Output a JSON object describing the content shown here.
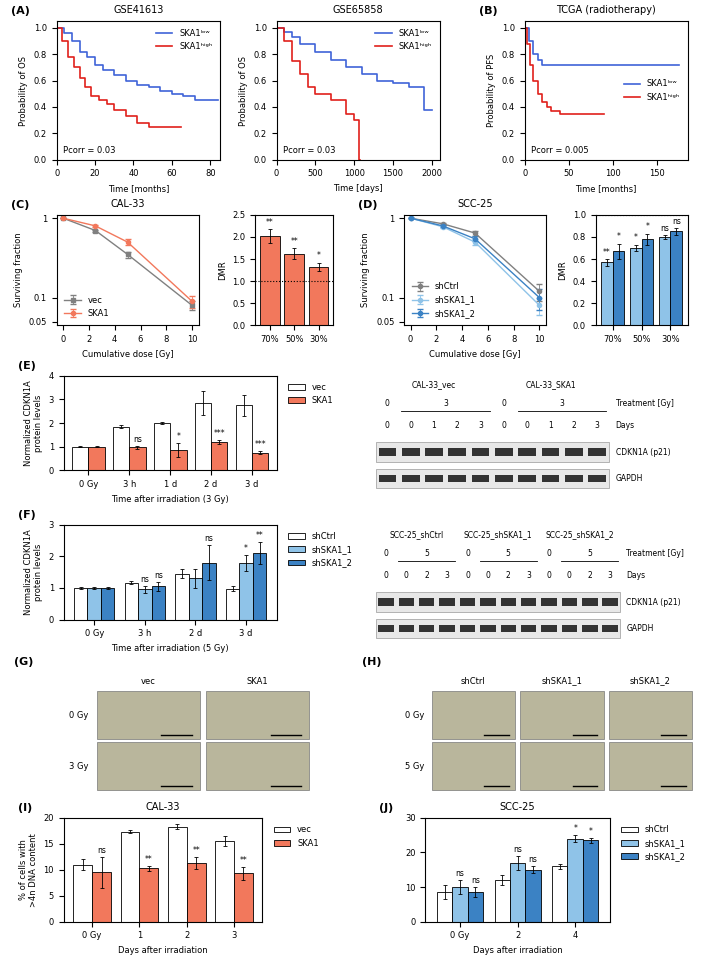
{
  "chart_data": [
    {
      "type": "step",
      "panel": "(A)",
      "title": "GSE41613",
      "xlabel": "Time [months]",
      "ylabel": "Probability of OS",
      "annotation": "Pcorr = 0.03",
      "legend": "upper right",
      "xlim": [
        0,
        85
      ],
      "xticks": [
        0,
        20,
        40,
        60,
        80
      ],
      "ylim": [
        0,
        1.05
      ],
      "yticks": [
        {
          "value": 0,
          "label": "0.0"
        },
        {
          "value": 0.2,
          "label": "0.2"
        },
        {
          "value": 0.4,
          "label": "0.4"
        },
        {
          "value": 0.6,
          "label": "0.6"
        },
        {
          "value": 0.8,
          "label": "0.8"
        },
        {
          "value": 1,
          "label": "1.0"
        }
      ],
      "series": [
        {
          "name": "SKA1ˡᵒʷ",
          "color": "#3f63d8",
          "x": [
            0,
            4,
            8,
            12,
            16,
            20,
            24,
            30,
            36,
            42,
            48,
            54,
            60,
            66,
            72,
            80,
            84
          ],
          "values": [
            1,
            0.96,
            0.9,
            0.82,
            0.78,
            0.72,
            0.68,
            0.64,
            0.6,
            0.57,
            0.55,
            0.52,
            0.5,
            0.48,
            0.45,
            0.45,
            0.45
          ]
        },
        {
          "name": "SKA1ʰⁱᵍʰ",
          "color": "#e0201b",
          "x": [
            0,
            3,
            6,
            9,
            12,
            15,
            18,
            22,
            26,
            30,
            36,
            42,
            48,
            56,
            65
          ],
          "values": [
            1,
            0.9,
            0.78,
            0.7,
            0.62,
            0.55,
            0.48,
            0.45,
            0.42,
            0.38,
            0.33,
            0.28,
            0.25,
            0.25,
            0.25
          ]
        }
      ]
    },
    {
      "type": "step",
      "title": "GSE65858",
      "xlabel": "Time [days]",
      "ylabel": "Probability of OS",
      "annotation": "Pcorr = 0.03",
      "legend": "upper right",
      "xlim": [
        0,
        2100
      ],
      "xticks": [
        0,
        500,
        1000,
        1500,
        2000
      ],
      "ylim": [
        0,
        1.05
      ],
      "yticks": [
        {
          "value": 0,
          "label": "0.0"
        },
        {
          "value": 0.2,
          "label": "0.2"
        },
        {
          "value": 0.4,
          "label": "0.4"
        },
        {
          "value": 0.6,
          "label": "0.6"
        },
        {
          "value": 0.8,
          "label": "0.8"
        },
        {
          "value": 1,
          "label": "1.0"
        }
      ],
      "series": [
        {
          "name": "SKA1ˡᵒʷ",
          "color": "#3f63d8",
          "x": [
            0,
            100,
            200,
            300,
            500,
            700,
            900,
            1100,
            1300,
            1500,
            1700,
            1900,
            2000
          ],
          "values": [
            1,
            0.97,
            0.93,
            0.88,
            0.82,
            0.76,
            0.7,
            0.65,
            0.6,
            0.58,
            0.55,
            0.38,
            0.38
          ]
        },
        {
          "name": "SKA1ʰⁱᵍʰ",
          "color": "#e0201b",
          "x": [
            0,
            100,
            200,
            300,
            400,
            500,
            700,
            900,
            1000,
            1060,
            1080
          ],
          "values": [
            1,
            0.9,
            0.75,
            0.65,
            0.55,
            0.5,
            0.45,
            0.35,
            0.3,
            0,
            0
          ]
        }
      ]
    },
    {
      "type": "step",
      "panel": "(B)",
      "title": "TCGA (radiotherapy)",
      "xlabel": "Time [months]",
      "ylabel": "Probability of PFS",
      "annotation": "Pcorr = 0.005",
      "legend": "center right",
      "xlim": [
        0,
        185
      ],
      "xticks": [
        0,
        50,
        100,
        150
      ],
      "ylim": [
        0,
        1.05
      ],
      "yticks": [
        {
          "value": 0,
          "label": "0.0"
        },
        {
          "value": 0.2,
          "label": "0.2"
        },
        {
          "value": 0.4,
          "label": "0.4"
        },
        {
          "value": 0.6,
          "label": "0.6"
        },
        {
          "value": 0.8,
          "label": "0.8"
        },
        {
          "value": 1,
          "label": "1.0"
        }
      ],
      "series": [
        {
          "name": "SKA1ˡᵒʷ",
          "color": "#3f63d8",
          "x": [
            0,
            5,
            10,
            15,
            20,
            30,
            50,
            100,
            175
          ],
          "values": [
            1,
            0.9,
            0.8,
            0.76,
            0.72,
            0.72,
            0.72,
            0.72,
            0.72
          ]
        },
        {
          "name": "SKA1ʰⁱᵍʰ",
          "color": "#e0201b",
          "x": [
            0,
            3,
            6,
            10,
            15,
            20,
            25,
            30,
            40,
            60,
            90
          ],
          "values": [
            1,
            0.88,
            0.72,
            0.6,
            0.5,
            0.44,
            0.4,
            0.37,
            0.35,
            0.35,
            0.35
          ]
        }
      ]
    },
    {
      "type": "line",
      "panel": "(C)",
      "title": "CAL-33",
      "xlabel": "Cumulative dose [Gy]",
      "ylabel": "Surviving fraction",
      "log": "y",
      "legend": "lower left",
      "x": [
        0,
        2.5,
        5,
        10
      ],
      "xlim": [
        -0.5,
        10.5
      ],
      "xticks": [
        0,
        2,
        4,
        6,
        8,
        10
      ],
      "ylim": [
        0.045,
        1.1
      ],
      "yticks": [
        0.05,
        0.1,
        1
      ],
      "series": [
        {
          "name": "vec",
          "color": "#808080",
          "marker": "square",
          "line_style": "solid",
          "values": [
            1,
            0.7,
            0.35,
            0.08
          ],
          "errors": [
            0,
            0.02,
            0.03,
            0.01
          ]
        },
        {
          "name": "SKA1",
          "color": "#f2785c",
          "marker": "circle",
          "line_style": "solid",
          "values": [
            1,
            0.8,
            0.5,
            0.09
          ],
          "errors": [
            0,
            0.03,
            0.04,
            0.015
          ]
        }
      ]
    },
    {
      "type": "bar",
      "ylabel": "DMR",
      "categories": [
        "70%",
        "50%",
        "30%"
      ],
      "reference_line": 1,
      "ylim": [
        0,
        2.5
      ],
      "yticks": [
        {
          "value": 0,
          "label": "0.0"
        },
        {
          "value": 0.5,
          "label": "0.5"
        },
        {
          "value": 1,
          "label": "1.0"
        },
        {
          "value": 1.5,
          "label": "1.5"
        },
        {
          "value": 2,
          "label": "2.0"
        },
        {
          "value": 2.5,
          "label": "2.5"
        }
      ],
      "series": [
        {
          "name": "SKA1",
          "color": "#f2785c",
          "values": [
            2.02,
            1.62,
            1.32
          ],
          "errors": [
            0.15,
            0.12,
            0.1
          ],
          "significance": [
            "**",
            "**",
            "*"
          ]
        }
      ]
    },
    {
      "type": "line",
      "panel": "(D)",
      "title": "SCC-25",
      "xlabel": "Cumulative dose [Gy]",
      "ylabel": "Surviving fraction",
      "log": "y",
      "legend": "lower left",
      "x": [
        0,
        2.5,
        5,
        10
      ],
      "xlim": [
        -0.5,
        10.5
      ],
      "xticks": [
        0,
        2,
        4,
        6,
        8,
        10
      ],
      "ylim": [
        0.045,
        1.1
      ],
      "yticks": [
        0.05,
        0.1,
        1
      ],
      "series": [
        {
          "name": "shCtrl",
          "color": "#808080",
          "marker": "circle",
          "line_style": "solid",
          "values": [
            1,
            0.85,
            0.65,
            0.12
          ],
          "errors": [
            0,
            0.03,
            0.05,
            0.03
          ]
        },
        {
          "name": "shSKA1_1",
          "color": "#8fc3e8",
          "marker": "circle",
          "line_style": "solid",
          "values": [
            1,
            0.78,
            0.5,
            0.08
          ],
          "errors": [
            0,
            0.03,
            0.04,
            0.02
          ]
        },
        {
          "name": "shSKA1_2",
          "color": "#3b82c4",
          "marker": "circle",
          "line_style": "solid",
          "values": [
            1,
            0.8,
            0.55,
            0.1
          ],
          "errors": [
            0,
            0.03,
            0.04,
            0.03
          ]
        }
      ]
    },
    {
      "type": "bar",
      "ylabel": "DMR",
      "categories": [
        "70%",
        "50%",
        "30%"
      ],
      "reference_line": 1,
      "ylim": [
        0,
        1.0
      ],
      "yticks": [
        {
          "value": 0,
          "label": "0.0"
        },
        {
          "value": 0.2,
          "label": "0.2"
        },
        {
          "value": 0.4,
          "label": "0.4"
        },
        {
          "value": 0.6,
          "label": "0.6"
        },
        {
          "value": 0.8,
          "label": "0.8"
        },
        {
          "value": 1,
          "label": "1.0"
        }
      ],
      "series": [
        {
          "name": "shSKA1_1",
          "color": "#8fc3e8",
          "values": [
            0.57,
            0.7,
            0.8
          ],
          "errors": [
            0.03,
            0.03,
            0.02
          ],
          "significance": [
            "**",
            "*",
            "ns"
          ]
        },
        {
          "name": "shSKA1_2",
          "color": "#3b82c4",
          "values": [
            0.67,
            0.78,
            0.85
          ],
          "errors": [
            0.07,
            0.05,
            0.03
          ],
          "significance": [
            "*",
            "*",
            "ns"
          ]
        }
      ]
    },
    {
      "type": "bar",
      "panel": "(E)",
      "xlabel": "Time after irradiation (3 Gy)",
      "ylabel": "Normalized CDKN1A\nprotein levels",
      "legend": "right",
      "categories": [
        "0 Gy",
        "3 h",
        "1 d",
        "2 d",
        "3 d"
      ],
      "ylim": [
        0,
        4
      ],
      "yticks": [
        0,
        1,
        2,
        3,
        4
      ],
      "series": [
        {
          "name": "vec",
          "color": "#ffffff",
          "values": [
            1,
            1.85,
            2.0,
            2.85,
            2.75
          ],
          "errors": [
            0.02,
            0.08,
            0.05,
            0.5,
            0.45
          ]
        },
        {
          "name": "SKA1",
          "color": "#f2785c",
          "values": [
            1,
            0.97,
            0.85,
            1.2,
            0.75
          ],
          "errors": [
            0.02,
            0.05,
            0.3,
            0.08,
            0.06
          ],
          "significance": [
            null,
            "ns",
            "*",
            "***",
            "***"
          ]
        }
      ]
    },
    {
      "type": "blot",
      "row_labels": {
        "treatment": "Treatment [Gy]",
        "days": "Days"
      },
      "bands": [
        "CDKN1A (p21)",
        "GAPDH"
      ],
      "groups": [
        {
          "name": "CAL-33_vec",
          "treatment": [
            0,
            3,
            3,
            3,
            3
          ],
          "days": [
            0,
            0,
            1,
            2,
            3
          ]
        },
        {
          "name": "CAL-33_SKA1",
          "treatment": [
            0,
            3,
            3,
            3,
            3
          ],
          "days": [
            0,
            0,
            1,
            2,
            3
          ]
        }
      ]
    },
    {
      "type": "bar",
      "panel": "(F)",
      "xlabel": "Time after irradiation (5 Gy)",
      "ylabel": "Normalized CDKN1A\nprotein levels",
      "legend": "right",
      "categories": [
        "0 Gy",
        "3 h",
        "2 d",
        "3 d"
      ],
      "ylim": [
        0,
        3
      ],
      "yticks": [
        0,
        1,
        2,
        3
      ],
      "series": [
        {
          "name": "shCtrl",
          "color": "#ffffff",
          "values": [
            1,
            1.17,
            1.45,
            0.98
          ],
          "errors": [
            0.02,
            0.06,
            0.15,
            0.08
          ]
        },
        {
          "name": "shSKA1_1",
          "color": "#8fc3e8",
          "values": [
            1,
            0.95,
            1.3,
            1.8
          ],
          "errors": [
            0.02,
            0.1,
            0.3,
            0.25
          ],
          "significance": [
            null,
            "ns",
            null,
            "*"
          ]
        },
        {
          "name": "shSKA1_2",
          "color": "#3b82c4",
          "values": [
            1,
            1.05,
            1.8,
            2.1
          ],
          "errors": [
            0.02,
            0.15,
            0.55,
            0.35
          ],
          "significance": [
            null,
            "ns",
            "ns",
            "**"
          ]
        }
      ]
    },
    {
      "type": "blot",
      "row_labels": {
        "treatment": "Treatment [Gy]",
        "days": "Days"
      },
      "bands": [
        "CDKN1A (p21)",
        "GAPDH"
      ],
      "groups": [
        {
          "name": "SCC-25_shCtrl",
          "treatment": [
            0,
            5,
            5,
            5
          ],
          "days": [
            0,
            0,
            2,
            3
          ]
        },
        {
          "name": "SCC-25_shSKA1_1",
          "treatment": [
            0,
            5,
            5,
            5
          ],
          "days": [
            0,
            0,
            2,
            3
          ]
        },
        {
          "name": "SCC-25_shSKA1_2",
          "treatment": [
            0,
            5,
            5,
            5
          ],
          "days": [
            0,
            0,
            2,
            3
          ]
        }
      ]
    },
    {
      "type": "image",
      "panel": "(G)",
      "columns": [
        "vec",
        "SKA1"
      ],
      "rows": [
        "0 Gy",
        "3 Gy"
      ]
    },
    {
      "type": "image",
      "panel": "(H)",
      "columns": [
        "shCtrl",
        "shSKA1_1",
        "shSKA1_2"
      ],
      "rows": [
        "0 Gy",
        "5 Gy"
      ]
    },
    {
      "type": "bar",
      "panel": "(I)",
      "title": "CAL-33",
      "xlabel": "Days after irradiation",
      "ylabel": "% of cells with\n>4n DNA content",
      "legend": "right",
      "categories": [
        "0 Gy",
        "1",
        "2",
        "3"
      ],
      "ylim": [
        0,
        20
      ],
      "yticks": [
        0,
        5,
        10,
        15,
        20
      ],
      "series": [
        {
          "name": "vec",
          "color": "#ffffff",
          "values": [
            11,
            17.3,
            18.3,
            15.5
          ],
          "errors": [
            1,
            0.3,
            0.5,
            1
          ]
        },
        {
          "name": "SKA1",
          "color": "#f2785c",
          "values": [
            9.5,
            10.3,
            11.3,
            9.3
          ],
          "errors": [
            3,
            0.5,
            1.2,
            1.2
          ],
          "significance": [
            "ns",
            "**",
            "**",
            "**"
          ]
        }
      ]
    },
    {
      "type": "bar",
      "panel": "(J)",
      "title": "SCC-25",
      "xlabel": "Days after irradiation",
      "legend": "right",
      "categories": [
        "0 Gy",
        "2",
        "4"
      ],
      "ylim": [
        0,
        30
      ],
      "yticks": [
        0,
        10,
        20,
        30
      ],
      "series": [
        {
          "name": "shCtrl",
          "color": "#ffffff",
          "values": [
            8.5,
            12,
            16
          ],
          "errors": [
            2,
            1.5,
            0.8
          ]
        },
        {
          "name": "shSKA1_1",
          "color": "#8fc3e8",
          "values": [
            10,
            17,
            24
          ],
          "errors": [
            2,
            2,
            1
          ],
          "significance": [
            "ns",
            "ns",
            "*"
          ]
        },
        {
          "name": "shSKA1_2",
          "color": "#3b82c4",
          "values": [
            8.5,
            15,
            23.5
          ],
          "errors": [
            1.5,
            1,
            0.8
          ],
          "significance": [
            "ns",
            "ns",
            "*"
          ]
        }
      ]
    }
  ]
}
